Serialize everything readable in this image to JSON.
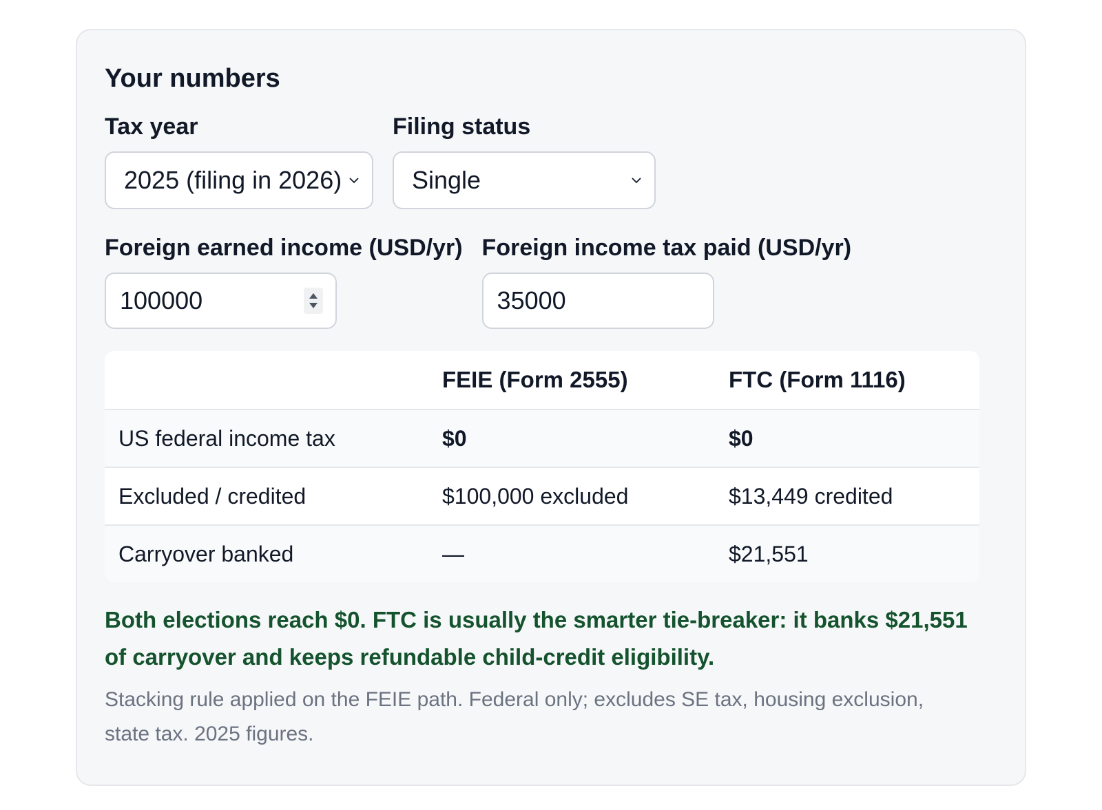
{
  "panel": {
    "title": "Your numbers"
  },
  "inputs": {
    "tax_year": {
      "label": "Tax year",
      "selected": "2025 (filing in 2026)"
    },
    "filing_status": {
      "label": "Filing status",
      "selected": "Single"
    },
    "foreign_income": {
      "label": "Foreign earned income (USD/yr)",
      "value": "100000"
    },
    "foreign_tax": {
      "label": "Foreign income tax paid (USD/yr)",
      "value": "35000"
    }
  },
  "comparison": {
    "columns": [
      "",
      "FEIE (Form 2555)",
      "FTC (Form 1116)"
    ],
    "rows": [
      {
        "label": "US federal income tax",
        "feie": "$0",
        "ftc": "$0"
      },
      {
        "label": "Excluded / credited",
        "feie": "$100,000 excluded",
        "ftc": "$13,449 credited"
      },
      {
        "label": "Carryover banked",
        "feie": "—",
        "ftc": "$21,551"
      }
    ]
  },
  "result": {
    "verdict_lead": "Both elections reach $0.",
    "verdict_rest": "FTC is usually the smarter tie-breaker: it banks $21,551 of carryover and keeps refundable child-credit eligibility.",
    "footnote": "Stacking rule applied on the FEIE path. Federal only; excludes SE tax, housing exclusion, state tax. 2025 figures."
  },
  "colors": {
    "panel_bg": "#f6f7f9",
    "verdict_text": "#14532d",
    "muted_text": "#6b7280"
  }
}
